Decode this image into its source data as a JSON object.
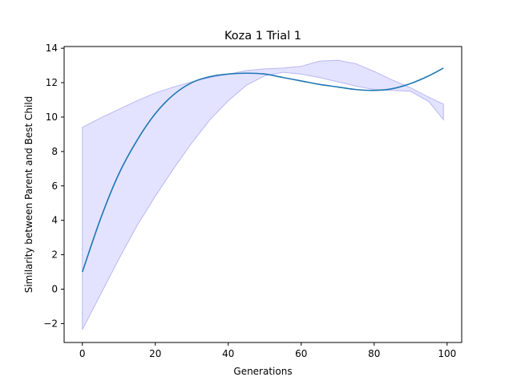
{
  "chart_data": {
    "type": "line",
    "title": "Koza 1 Trial 1",
    "xlabel": "Generations",
    "ylabel": "Similarity between Parent and Best Child",
    "xlim": [
      -5,
      104
    ],
    "ylim": [
      -3.1,
      14.1
    ],
    "xticks": [
      0,
      20,
      40,
      60,
      80,
      100
    ],
    "yticks": [
      -2,
      0,
      2,
      4,
      6,
      8,
      10,
      12,
      14
    ],
    "grid": false,
    "series": [
      {
        "values": [
          [
            0,
            1.0
          ],
          [
            5,
            4.1
          ],
          [
            10,
            6.7
          ],
          [
            15,
            8.65
          ],
          [
            20,
            10.2
          ],
          [
            25,
            11.3
          ],
          [
            30,
            12.0
          ],
          [
            35,
            12.35
          ],
          [
            40,
            12.5
          ],
          [
            45,
            12.55
          ],
          [
            50,
            12.5
          ],
          [
            55,
            12.3
          ],
          [
            60,
            12.1
          ],
          [
            65,
            11.9
          ],
          [
            70,
            11.75
          ],
          [
            75,
            11.6
          ],
          [
            80,
            11.55
          ],
          [
            85,
            11.65
          ],
          [
            90,
            11.95
          ],
          [
            95,
            12.4
          ],
          [
            99,
            12.85
          ]
        ],
        "color": "#1f77b4"
      }
    ],
    "bands": [
      {
        "upper": [
          [
            0,
            9.4
          ],
          [
            5,
            9.95
          ],
          [
            10,
            10.45
          ],
          [
            15,
            10.95
          ],
          [
            20,
            11.4
          ],
          [
            25,
            11.75
          ],
          [
            30,
            12.05
          ],
          [
            35,
            12.3
          ],
          [
            40,
            12.5
          ],
          [
            45,
            12.7
          ],
          [
            50,
            12.8
          ],
          [
            55,
            12.85
          ],
          [
            60,
            12.95
          ],
          [
            65,
            13.25
          ],
          [
            70,
            13.3
          ],
          [
            75,
            13.1
          ],
          [
            80,
            12.65
          ],
          [
            85,
            12.15
          ],
          [
            90,
            11.7
          ],
          [
            95,
            11.15
          ],
          [
            99,
            10.75
          ]
        ],
        "lower": [
          [
            0,
            -2.35
          ],
          [
            5,
            -0.3
          ],
          [
            10,
            1.75
          ],
          [
            15,
            3.7
          ],
          [
            20,
            5.4
          ],
          [
            25,
            7.0
          ],
          [
            30,
            8.5
          ],
          [
            35,
            9.85
          ],
          [
            40,
            10.95
          ],
          [
            45,
            11.85
          ],
          [
            50,
            12.4
          ],
          [
            55,
            12.6
          ],
          [
            60,
            12.5
          ],
          [
            65,
            12.3
          ],
          [
            70,
            12.05
          ],
          [
            75,
            11.8
          ],
          [
            80,
            11.6
          ],
          [
            85,
            11.55
          ],
          [
            90,
            11.5
          ],
          [
            95,
            10.9
          ],
          [
            99,
            9.85
          ]
        ],
        "fill": "#ccccff",
        "stroke": "#b8b8f5"
      }
    ]
  }
}
